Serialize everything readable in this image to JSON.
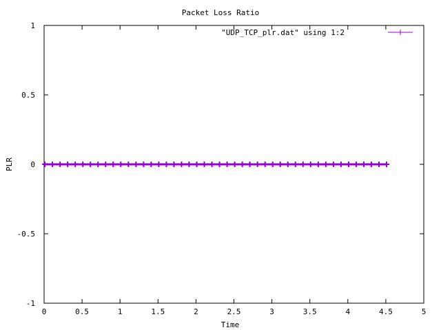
{
  "chart_data": {
    "type": "line",
    "title": "Packet Loss Ratio",
    "xlabel": "Time",
    "ylabel": "PLR",
    "xlim": [
      0,
      5
    ],
    "ylim": [
      -1,
      1
    ],
    "x_ticks": [
      0,
      0.5,
      1,
      1.5,
      2,
      2.5,
      3,
      3.5,
      4,
      4.5,
      5
    ],
    "x_tick_labels": [
      "0",
      "0.5",
      "1",
      "1.5",
      "2",
      "2.5",
      "3",
      "3.5",
      "4",
      "4.5",
      "5"
    ],
    "y_ticks": [
      -1,
      -0.5,
      0,
      0.5,
      1
    ],
    "y_tick_labels": [
      "-1",
      "-0.5",
      "0",
      "0.5",
      "1"
    ],
    "grid": false,
    "legend_position": "top-right",
    "series": [
      {
        "name": "\"UDP_TCP_plr.dat\" using 1:2",
        "color": "#9400d3",
        "marker": "plus",
        "x": [
          0.01,
          0.11,
          0.21,
          0.31,
          0.41,
          0.51,
          0.61,
          0.71,
          0.81,
          0.91,
          1.01,
          1.11,
          1.21,
          1.31,
          1.41,
          1.51,
          1.61,
          1.71,
          1.81,
          1.91,
          2.01,
          2.11,
          2.21,
          2.31,
          2.41,
          2.51,
          2.61,
          2.71,
          2.81,
          2.91,
          3.01,
          3.11,
          3.21,
          3.31,
          3.41,
          3.51,
          3.61,
          3.71,
          3.81,
          3.91,
          4.01,
          4.11,
          4.21,
          4.31,
          4.41,
          4.51
        ],
        "y": [
          0,
          0,
          0,
          0,
          0,
          0,
          0,
          0,
          0,
          0,
          0,
          0,
          0,
          0,
          0,
          0,
          0,
          0,
          0,
          0,
          0,
          0,
          0,
          0,
          0,
          0,
          0,
          0,
          0,
          0,
          0,
          0,
          0,
          0,
          0,
          0,
          0,
          0,
          0,
          0,
          0,
          0,
          0,
          0,
          0,
          0
        ]
      }
    ]
  }
}
